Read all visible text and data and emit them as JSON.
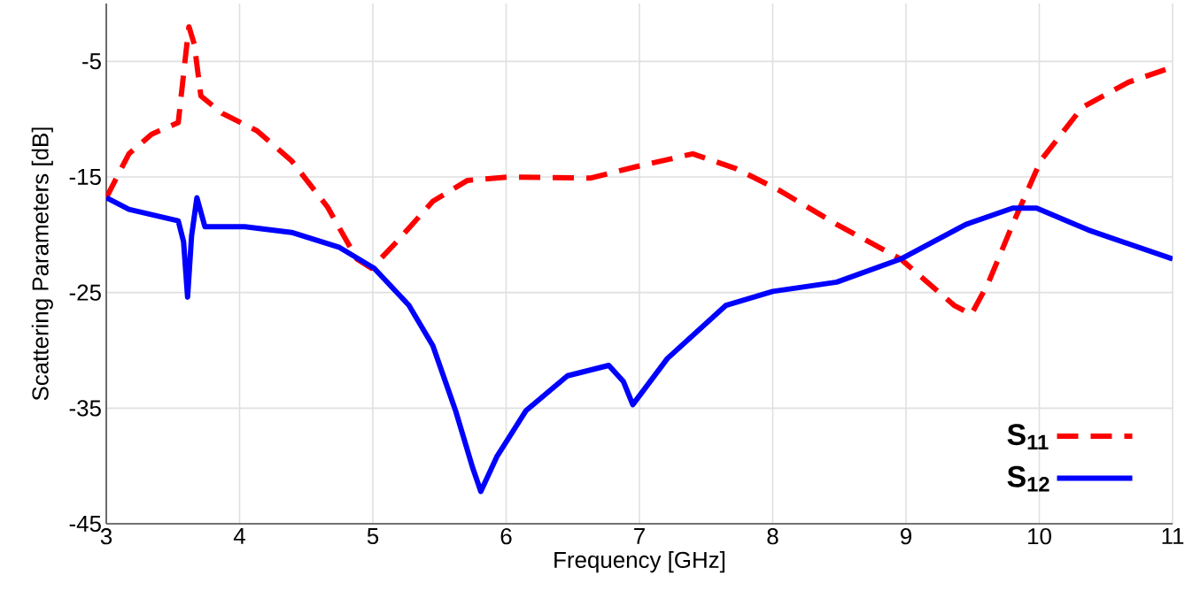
{
  "chart_data": {
    "type": "line",
    "xlabel": "Frequency [GHz]",
    "ylabel": "Scattering Parameters [dB]",
    "xlim": [
      3,
      11
    ],
    "ylim": [
      -45,
      0
    ],
    "xticks": [
      3,
      4,
      5,
      6,
      7,
      8,
      9,
      10,
      11
    ],
    "yticks": [
      -45,
      -35,
      -25,
      -15,
      -5
    ],
    "grid": true,
    "legend": "bottom right",
    "marker": "none",
    "series": [
      {
        "name": "S$_{11}$",
        "color": "#ff0000",
        "line_style": "dashed",
        "x": [
          3,
          3.17,
          3.34,
          3.54,
          3.6,
          3.62,
          3.66,
          3.71,
          3.87,
          4.13,
          4.39,
          4.66,
          4.88,
          4.99,
          5.18,
          5.45,
          5.71,
          6.02,
          6.63,
          6.98,
          7.4,
          7.73,
          8.04,
          8.48,
          8.96,
          9.36,
          9.49,
          9.62,
          9.8,
          10.01,
          10.32,
          10.67,
          11
        ],
        "values": [
          -16.8,
          -13,
          -11.3,
          -10.3,
          -4,
          -2,
          -3.5,
          -8,
          -9.5,
          -11,
          -13.6,
          -17.6,
          -22.1,
          -22.9,
          -20.6,
          -17.1,
          -15.3,
          -15,
          -15.1,
          -14.1,
          -13,
          -14.3,
          -16.1,
          -19.1,
          -22.1,
          -26.1,
          -26.9,
          -24.1,
          -19.1,
          -13.6,
          -9,
          -6.8,
          -5.5
        ]
      },
      {
        "name": "S$_{12}$",
        "color": "#0000ff",
        "line_style": "solid",
        "x": [
          3,
          3.17,
          3.54,
          3.58,
          3.61,
          3.64,
          3.68,
          3.74,
          4.04,
          4.39,
          4.75,
          5.01,
          5.27,
          5.45,
          5.62,
          5.75,
          5.81,
          5.93,
          6.15,
          6.46,
          6.77,
          6.88,
          6.95,
          7.21,
          7.65,
          8.0,
          8.48,
          8.96,
          9.45,
          9.8,
          9.98,
          10.37,
          11
        ],
        "values": [
          -16.8,
          -17.8,
          -18.8,
          -20.6,
          -25.4,
          -20.1,
          -16.8,
          -19.3,
          -19.3,
          -19.8,
          -21.1,
          -22.9,
          -26.1,
          -29.6,
          -35.2,
          -40.2,
          -42.2,
          -39.2,
          -35.2,
          -32.2,
          -31.3,
          -32.7,
          -34.7,
          -30.7,
          -26.1,
          -24.9,
          -24.1,
          -22.1,
          -19.1,
          -17.7,
          -17.7,
          -19.6,
          -22.1
        ]
      }
    ]
  }
}
